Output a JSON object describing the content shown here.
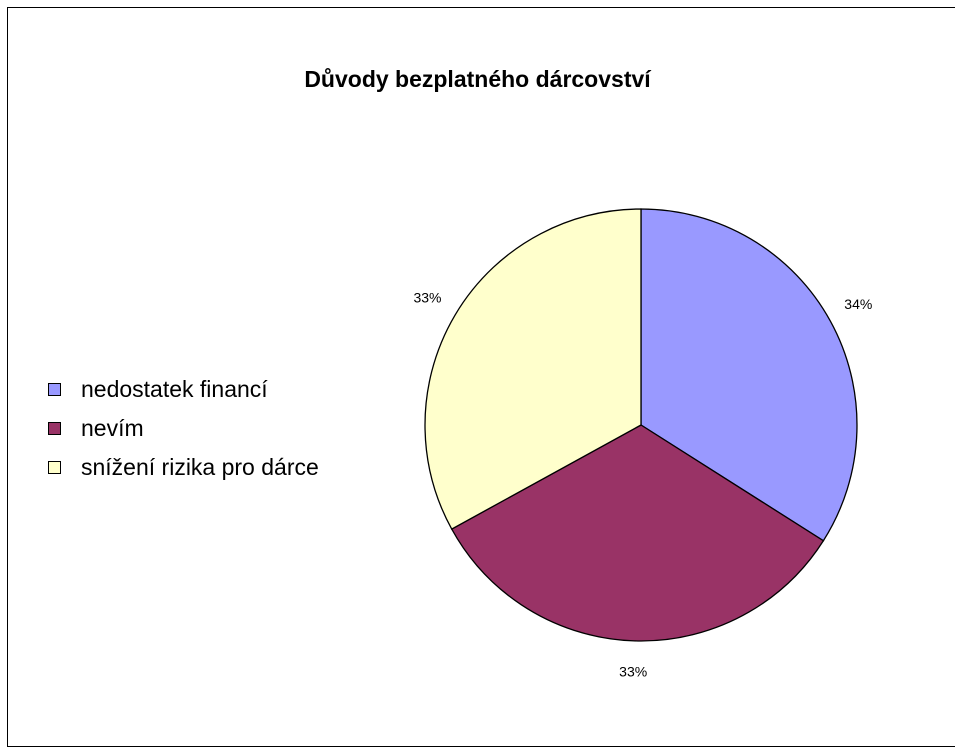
{
  "chart_data": {
    "type": "pie",
    "title": "Důvody bezplatného dárcovství",
    "categories": [
      "nedostatek financí",
      "nevím",
      "snížení rizika pro dárce"
    ],
    "values": [
      34,
      33,
      33
    ],
    "labels": [
      "34%",
      "33%",
      "33%"
    ],
    "colors": [
      "#9999FF",
      "#993366",
      "#FFFFCC"
    ],
    "legend_position": "left"
  }
}
